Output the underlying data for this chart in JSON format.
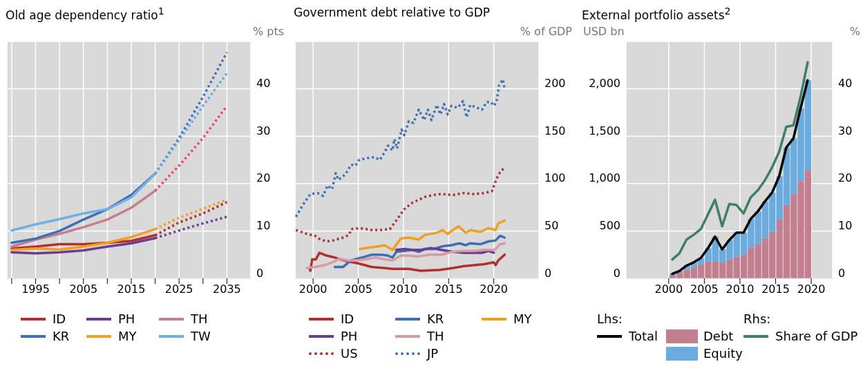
{
  "chart_data": [
    {
      "type": "line",
      "title": "Old age dependency ratio$^{1}$",
      "ylabel": "% pts",
      "legend": "bottom",
      "grid": true,
      "x": [
        1990,
        1995,
        2000,
        2005,
        2010,
        2015,
        2020
      ],
      "xlim": [
        1989,
        2040
      ],
      "xticks": [
        {
          "value": 1990,
          "label": null
        },
        1995,
        {
          "value": 2000,
          "label": null
        },
        2005,
        {
          "value": 2010,
          "label": null
        },
        2015,
        {
          "value": 2020,
          "label": null
        },
        2025,
        {
          "value": 2030,
          "label": null
        },
        2035
      ],
      "ylim": [
        0,
        50
      ],
      "yticks": [
        0,
        10,
        20,
        30,
        40
      ],
      "series": [
        {
          "name": "ID",
          "color": "#b03030",
          "values": [
            6.3,
            6.7,
            7.2,
            7.2,
            7.5,
            7.9,
            9.1
          ]
        },
        {
          "color": "#b03030",
          "line_style": "dotted",
          "x": [
            2020,
            2025,
            2030,
            2035
          ],
          "values": [
            9.1,
            11.8,
            13.7,
            16.1
          ]
        },
        {
          "name": "PH",
          "color": "#6a3d8f",
          "values": [
            5.5,
            5.3,
            5.5,
            5.9,
            6.7,
            7.4,
            8.5
          ]
        },
        {
          "color": "#6a3d8f",
          "line_style": "dotted",
          "x": [
            2020,
            2025,
            2030,
            2035
          ],
          "values": [
            8.5,
            10.1,
            11.6,
            13.0
          ]
        },
        {
          "name": "TH",
          "color": "#c47f8f",
          "values": [
            6.7,
            8.2,
            9.4,
            10.8,
            12.4,
            14.9,
            18.5
          ]
        },
        {
          "color": "#e8486a",
          "line_style": "dotted",
          "x": [
            2020,
            2025,
            2030,
            2035
          ],
          "values": [
            18.5,
            23.8,
            29.6,
            36.4
          ]
        },
        {
          "name": "KR",
          "color": "#3d6fb5",
          "values": [
            7.5,
            8.4,
            10.0,
            12.4,
            14.6,
            17.6,
            22.1
          ]
        },
        {
          "color": "#3d6fb5",
          "line_style": "dotted",
          "x": [
            2020,
            2025,
            2030,
            2035
          ],
          "values": [
            22.1,
            29.6,
            38.3,
            47.7
          ]
        },
        {
          "name": "MY",
          "color": "#f0a020",
          "values": [
            6.0,
            6.3,
            6.1,
            6.7,
            7.5,
            8.7,
            10.4
          ]
        },
        {
          "color": "#f0a020",
          "line_style": "dotted",
          "x": [
            2020,
            2025,
            2030,
            2035
          ],
          "values": [
            10.4,
            12.8,
            14.7,
            16.6
          ]
        },
        {
          "name": "TW",
          "color": "#6fb0e6",
          "values": [
            10.1,
            11.4,
            12.5,
            13.7,
            14.6,
            17.1,
            22.1
          ]
        },
        {
          "color": "#5aaee0",
          "line_style": "dotted",
          "x": [
            2020,
            2025,
            2030,
            2035
          ],
          "values": [
            22.1,
            29.1,
            36.4,
            43.3
          ]
        }
      ]
    },
    {
      "type": "line",
      "title": "Government debt relative to GDP",
      "ylabel": "% of GDP",
      "legend": "bottom",
      "grid": true,
      "xlim": [
        1998,
        2025
      ],
      "xticks": [
        2000,
        2005,
        2010,
        2015,
        2020
      ],
      "ylim": [
        0,
        250
      ],
      "yticks": [
        0,
        50,
        100,
        150,
        200
      ],
      "series": [
        {
          "name": "ID",
          "color": "#b03030",
          "x": [
            1999.6,
            1999.7,
            1999.9,
            2000.3,
            2000.7,
            2001.5,
            2002.4,
            2003.8,
            2004.9,
            2006.5,
            2007.9,
            2008.8,
            2010.6,
            2011.9,
            2014.0,
            2015.5,
            2016.7,
            2018.9,
            2020.0,
            2020.2,
            2020.5,
            2021.2
          ],
          "values": [
            11,
            8,
            20,
            20,
            27,
            24,
            22,
            18,
            16,
            12,
            11,
            10,
            10,
            8,
            9,
            11,
            13,
            15,
            17,
            14,
            19,
            25
          ]
        },
        {
          "name": "KR",
          "color": "#3d6fb5",
          "x": [
            2002.4,
            2003.3,
            2004.2,
            2005.4,
            2006.5,
            2007.6,
            2008.3,
            2008.8,
            2009.2,
            2010.1,
            2011.0,
            2011.7,
            2012.4,
            2013.3,
            2014.4,
            2015.3,
            2016.2,
            2016.9,
            2017.4,
            2018.5,
            2019.4,
            2020.2,
            2020.7,
            2021.2
          ],
          "values": [
            12,
            12,
            19,
            22,
            25,
            25,
            24,
            22,
            28,
            29,
            30,
            28,
            31,
            31,
            34,
            35,
            37,
            35,
            37,
            36,
            39,
            40,
            45,
            43
          ]
        },
        {
          "name": "MY",
          "color": "#f0a020",
          "x": [
            2005.2,
            2006.5,
            2007.4,
            2007.9,
            2008.8,
            2009.1,
            2009.7,
            2010.6,
            2011.7,
            2012.4,
            2013.7,
            2014.3,
            2014.9,
            2015.5,
            2016.1,
            2016.9,
            2017.4,
            2018.5,
            2019.4,
            2020.2,
            2020.5,
            2021.2
          ],
          "values": [
            31,
            33,
            34,
            35,
            30,
            34,
            42,
            43,
            41,
            46,
            48,
            51,
            47,
            51,
            55,
            48,
            51,
            49,
            53,
            51,
            58,
            61
          ]
        },
        {
          "name": "PH",
          "color": "#6a3d8f",
          "x": [
            2009.2,
            2010.1,
            2011.0,
            2011.9,
            2013.1,
            2014.2,
            2015.5,
            2016.7,
            2017.8,
            2018.7,
            2019.4,
            2020.0
          ],
          "values": [
            30,
            31,
            30,
            30,
            32,
            30,
            28,
            27,
            27,
            27,
            29,
            27
          ]
        },
        {
          "name": "TH",
          "color": "#d99aa6",
          "x": [
            1999.3,
            2000.2,
            2001.3,
            2002.4,
            2002.9,
            2003.8,
            2004.7,
            2005.8,
            2006.9,
            2007.9,
            2008.8,
            2009.7,
            2010.6,
            2011.5,
            2012.8,
            2014.2,
            2015.3,
            2016.7,
            2017.8,
            2018.9,
            2020.1,
            2020.7,
            2021.2
          ],
          "values": [
            11,
            12,
            14,
            18,
            21,
            19,
            19,
            20,
            22,
            20,
            19,
            24,
            24,
            23,
            25,
            25,
            28,
            29,
            29,
            30,
            30,
            36,
            37
          ]
        },
        {
          "name": "US",
          "color": "#b03030",
          "line_style": "dotted",
          "x": [
            1998.1,
            1999.3,
            2000.2,
            2000.8,
            2001.5,
            2002.2,
            2003.3,
            2004.0,
            2004.2,
            2005.2,
            2006.5,
            2007.4,
            2008.5,
            2009.2,
            2010.1,
            2011.0,
            2012.4,
            2013.3,
            2014.2,
            2015.5,
            2016.7,
            2017.8,
            2018.9,
            2019.8,
            2020.3,
            2020.7,
            2021.1
          ],
          "values": [
            51,
            47,
            45,
            41,
            39,
            40,
            43,
            46,
            52,
            53,
            51,
            51,
            52,
            61,
            73,
            80,
            86,
            88,
            89,
            88,
            90,
            89,
            90,
            92,
            105,
            112,
            116
          ]
        },
        {
          "name": "JP",
          "color": "#3d6fb5",
          "line_style": "dotted",
          "x": [
            1998.1,
            1998.9,
            1999.7,
            2000.5,
            2001.1,
            2001.6,
            2002.1,
            2002.5,
            2002.8,
            2003.6,
            2004.2,
            2004.7,
            2005.1,
            2006.0,
            2006.8,
            2007.4,
            2007.9,
            2008.3,
            2008.8,
            2009.0,
            2009.3,
            2009.8,
            2010.1,
            2010.6,
            2011.1,
            2011.7,
            2012.3,
            2012.7,
            2013.1,
            2013.7,
            2014.1,
            2014.5,
            2014.9,
            2015.3,
            2016.0,
            2016.6,
            2017.0,
            2017.4,
            2017.9,
            2018.7,
            2019.2,
            2019.7,
            2020.0,
            2020.3,
            2020.6,
            2021.0,
            2021.2
          ],
          "values": [
            65,
            78,
            89,
            90,
            87,
            98,
            94,
            111,
            104,
            110,
            120,
            119,
            125,
            127,
            128,
            125,
            133,
            140,
            135,
            147,
            137,
            157,
            151,
            166,
            164,
            178,
            167,
            178,
            167,
            183,
            173,
            184,
            173,
            182,
            180,
            187,
            170,
            183,
            181,
            178,
            186,
            186,
            182,
            186,
            204,
            210,
            200
          ]
        }
      ]
    },
    {
      "type": "bar",
      "stacked": true,
      "title": "External portfolio assets$^{2}$",
      "ylabel": "USD bn",
      "y2label": "%",
      "legend": "bottom",
      "grid": true,
      "annotations": [
        "Lhs:",
        "Rhs:"
      ],
      "x": [
        2000.5,
        2001.5,
        2002.5,
        2003.5,
        2004.5,
        2005.5,
        2006.5,
        2007.5,
        2008.5,
        2009.5,
        2010.5,
        2011.5,
        2012.5,
        2013.5,
        2014.5,
        2015.5,
        2016.5,
        2017.5,
        2018.5,
        2019.5
      ],
      "xlim": [
        1994,
        2023
      ],
      "xticks": [
        2000,
        2005,
        2010,
        2015,
        2020
      ],
      "ylim": [
        0,
        2500
      ],
      "yticks": [
        0,
        500,
        {
          "value": 1000,
          "label": "1,000"
        },
        {
          "value": 1500,
          "label": "1,500"
        },
        {
          "value": 2000,
          "label": "2,000"
        }
      ],
      "y2lim": [
        0,
        50
      ],
      "y2ticks": [
        0,
        10,
        20,
        30,
        40
      ],
      "series": [
        {
          "name": "Debt",
          "color": "#c47f8f",
          "values": [
            30,
            60,
            89,
            116,
            145,
            181,
            181,
            166,
            198,
            229,
            253,
            325,
            362,
            427,
            489,
            619,
            774,
            887,
            1024,
            1140
          ]
        },
        {
          "name": "Equity",
          "color": "#6aabe0",
          "values": [
            18,
            17,
            46,
            53,
            70,
            137,
            260,
            140,
            207,
            253,
            229,
            302,
            344,
            385,
            415,
            458,
            607,
            590,
            769,
            949
          ]
        },
        {
          "name": "Total",
          "type": "line",
          "color": "#000000",
          "values": [
            48,
            77,
            135,
            169,
            215,
            318,
            441,
            306,
            405,
            482,
            482,
            627,
            706,
            812,
            904,
            1077,
            1381,
            1477,
            1793,
            2089
          ]
        },
        {
          "name": "Share of GDP",
          "type": "line",
          "axis": "y2",
          "color": "#3f7f68",
          "values": [
            4.0,
            5.3,
            8.2,
            9.2,
            10.4,
            13.5,
            16.6,
            11.0,
            15.7,
            15.5,
            13.7,
            17.1,
            18.6,
            20.7,
            23.4,
            26.7,
            32.0,
            32.3,
            38.3,
            45.6
          ]
        }
      ]
    }
  ]
}
